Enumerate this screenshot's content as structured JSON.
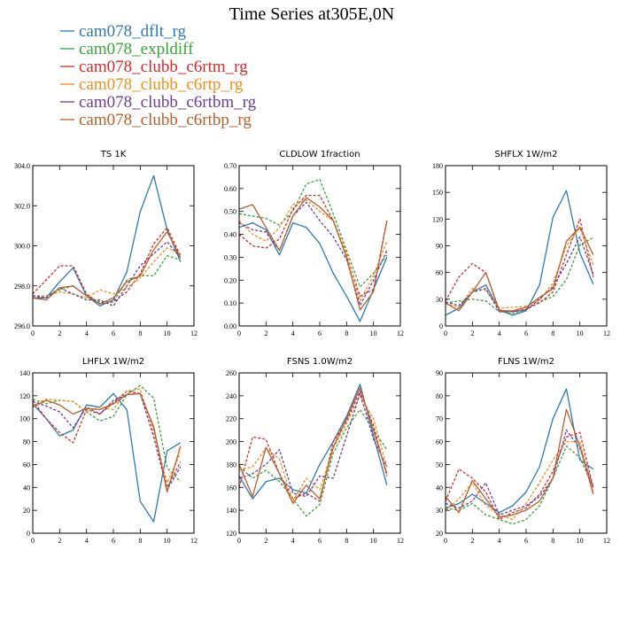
{
  "figure": {
    "title": "Time Series at305E,0N"
  },
  "legend": {
    "placement": "top-left",
    "entries": [
      {
        "name": "cam078_dflt_rg",
        "color": "#2e7ab5",
        "dash": "solid"
      },
      {
        "name": "cam078_expldiff",
        "color": "#3aa33a",
        "dash": "dashed"
      },
      {
        "name": "cam078_clubb_c6rtm_rg",
        "color": "#d42a2a",
        "dash": "dashed"
      },
      {
        "name": "cam078_clubb_c6rtp_rg",
        "color": "#f28c1a",
        "dash": "dashed"
      },
      {
        "name": "cam078_clubb_c6rtbm_rg",
        "color": "#6a3d9a",
        "dash": "dashed"
      },
      {
        "name": "cam078_clubb_c6rtbp_rg",
        "color": "#b5602f",
        "dash": "solid"
      }
    ]
  },
  "chart_data": [
    {
      "type": "line",
      "title": "TS   1K",
      "x": [
        0,
        1,
        2,
        3,
        4,
        5,
        6,
        7,
        8,
        9,
        10,
        11
      ],
      "xlim": [
        0,
        12
      ],
      "xticks": [
        0,
        2,
        4,
        6,
        8,
        10,
        12
      ],
      "ylim": [
        296,
        304
      ],
      "yticks": [
        296.0,
        298.0,
        300.0,
        302.0,
        304.0
      ],
      "ytick_labels": [
        "296.0",
        "298.0",
        "300.0",
        "302.0",
        "304.0"
      ],
      "series": [
        {
          "values": [
            297.4,
            297.4,
            298.2,
            298.9,
            297.5,
            297.0,
            297.3,
            298.7,
            301.7,
            303.5,
            300.8,
            299.2
          ]
        },
        {
          "values": [
            297.5,
            297.5,
            297.8,
            298.0,
            297.5,
            297.2,
            297.2,
            298.3,
            298.5,
            298.5,
            299.5,
            299.3
          ]
        },
        {
          "values": [
            297.6,
            298.3,
            299.0,
            299.0,
            297.6,
            297.1,
            297.2,
            297.7,
            298.6,
            300.1,
            300.9,
            299.5
          ]
        },
        {
          "values": [
            297.4,
            297.5,
            297.7,
            297.6,
            297.4,
            297.8,
            297.6,
            297.9,
            298.4,
            299.2,
            299.9,
            299.6
          ]
        },
        {
          "values": [
            297.5,
            297.4,
            297.9,
            297.6,
            297.3,
            297.3,
            297.0,
            298.0,
            299.0,
            299.6,
            300.2,
            299.4
          ]
        },
        {
          "values": [
            297.4,
            297.3,
            297.9,
            298.0,
            297.5,
            297.1,
            297.4,
            298.2,
            298.5,
            299.8,
            300.7,
            299.4
          ]
        }
      ]
    },
    {
      "type": "line",
      "title": "CLDLOW   1fraction",
      "x": [
        0,
        1,
        2,
        3,
        4,
        5,
        6,
        7,
        8,
        9,
        10,
        11
      ],
      "xlim": [
        0,
        12
      ],
      "xticks": [
        0,
        2,
        4,
        6,
        8,
        10,
        12
      ],
      "ylim": [
        0,
        0.7
      ],
      "yticks": [
        0,
        0.1,
        0.2,
        0.3,
        0.4,
        0.5,
        0.6,
        0.7
      ],
      "ytick_labels": [
        "0.00",
        "0.10",
        "0.20",
        "0.30",
        "0.40",
        "0.50",
        "0.60",
        "0.70"
      ],
      "series": [
        {
          "values": [
            0.43,
            0.45,
            0.42,
            0.31,
            0.45,
            0.43,
            0.36,
            0.23,
            0.13,
            0.02,
            0.16,
            0.3
          ]
        },
        {
          "values": [
            0.49,
            0.48,
            0.47,
            0.44,
            0.5,
            0.62,
            0.64,
            0.49,
            0.33,
            0.17,
            0.23,
            0.31
          ]
        },
        {
          "values": [
            0.4,
            0.35,
            0.34,
            0.38,
            0.51,
            0.57,
            0.57,
            0.46,
            0.31,
            0.13,
            0.16,
            0.46
          ]
        },
        {
          "values": [
            0.46,
            0.4,
            0.37,
            0.43,
            0.53,
            0.55,
            0.5,
            0.46,
            0.32,
            0.11,
            0.22,
            0.37
          ]
        },
        {
          "values": [
            0.45,
            0.42,
            0.41,
            0.33,
            0.48,
            0.54,
            0.46,
            0.39,
            0.29,
            0.09,
            0.2,
            0.33
          ]
        },
        {
          "values": [
            0.51,
            0.53,
            0.43,
            0.33,
            0.48,
            0.56,
            0.52,
            0.46,
            0.3,
            0.07,
            0.15,
            0.46
          ]
        }
      ]
    },
    {
      "type": "line",
      "title": "SHFLX   1W/m2",
      "x": [
        0,
        1,
        2,
        3,
        4,
        5,
        6,
        7,
        8,
        9,
        10,
        11
      ],
      "xlim": [
        0,
        12
      ],
      "xticks": [
        0,
        2,
        4,
        6,
        8,
        10,
        12
      ],
      "ylim": [
        0,
        180
      ],
      "yticks": [
        0,
        30,
        60,
        90,
        120,
        150,
        180
      ],
      "ytick_labels": [
        "0",
        "30",
        "60",
        "90",
        "120",
        "150",
        "180"
      ],
      "series": [
        {
          "values": [
            12,
            20,
            38,
            46,
            18,
            12,
            17,
            46,
            122,
            152,
            82,
            47
          ]
        },
        {
          "values": [
            26,
            28,
            30,
            28,
            16,
            14,
            18,
            27,
            33,
            52,
            91,
            99
          ]
        },
        {
          "values": [
            28,
            55,
            70,
            60,
            18,
            16,
            19,
            26,
            38,
            80,
            120,
            55
          ]
        },
        {
          "values": [
            25,
            21,
            42,
            40,
            20,
            21,
            22,
            29,
            48,
            90,
            110,
            68
          ]
        },
        {
          "values": [
            27,
            23,
            38,
            42,
            16,
            16,
            18,
            30,
            44,
            70,
            100,
            58
          ]
        },
        {
          "values": [
            26,
            17,
            38,
            60,
            17,
            17,
            21,
            32,
            42,
            95,
            111,
            80
          ]
        }
      ]
    },
    {
      "type": "line",
      "title": "LHFLX   1W/m2",
      "x": [
        0,
        1,
        2,
        3,
        4,
        5,
        6,
        7,
        8,
        9,
        10,
        11
      ],
      "xlim": [
        0,
        12
      ],
      "xticks": [
        0,
        2,
        4,
        6,
        8,
        10,
        12
      ],
      "ylim": [
        0,
        140
      ],
      "yticks": [
        0,
        20,
        40,
        60,
        80,
        100,
        120,
        140
      ],
      "ytick_labels": [
        "0",
        "20",
        "40",
        "60",
        "80",
        "100",
        "120",
        "140"
      ],
      "series": [
        {
          "values": [
            113,
            100,
            85,
            90,
            112,
            110,
            122,
            108,
            28,
            10,
            72,
            79
          ]
        },
        {
          "values": [
            117,
            113,
            116,
            115,
            106,
            98,
            102,
            121,
            129,
            118,
            57,
            45
          ]
        },
        {
          "values": [
            116,
            100,
            88,
            79,
            108,
            104,
            114,
            124,
            122,
            92,
            40,
            62
          ]
        },
        {
          "values": [
            112,
            117,
            116,
            115,
            106,
            110,
            108,
            124,
            126,
            88,
            44,
            70
          ]
        },
        {
          "values": [
            115,
            111,
            106,
            92,
            110,
            104,
            116,
            121,
            122,
            84,
            38,
            58
          ]
        },
        {
          "values": [
            110,
            116,
            112,
            104,
            109,
            108,
            113,
            121,
            122,
            93,
            36,
            76
          ]
        }
      ]
    },
    {
      "type": "line",
      "title": "FSNS   1.0W/m2",
      "x": [
        0,
        1,
        2,
        3,
        4,
        5,
        6,
        7,
        8,
        9,
        10,
        11
      ],
      "xlim": [
        0,
        12
      ],
      "xticks": [
        0,
        2,
        4,
        6,
        8,
        10,
        12
      ],
      "ylim": [
        120,
        260
      ],
      "yticks": [
        120,
        140,
        160,
        180,
        200,
        220,
        240,
        260
      ],
      "ytick_labels": [
        "120",
        "140",
        "160",
        "180",
        "200",
        "220",
        "240",
        "260"
      ],
      "series": [
        {
          "values": [
            170,
            150,
            165,
            168,
            158,
            155,
            180,
            200,
            222,
            250,
            205,
            162
          ]
        },
        {
          "values": [
            178,
            168,
            175,
            165,
            150,
            135,
            145,
            190,
            212,
            228,
            210,
            193
          ]
        },
        {
          "values": [
            160,
            204,
            202,
            172,
            150,
            155,
            148,
            200,
            218,
            244,
            214,
            170
          ]
        },
        {
          "values": [
            175,
            178,
            194,
            185,
            148,
            168,
            158,
            194,
            216,
            240,
            220,
            178
          ]
        },
        {
          "values": [
            168,
            172,
            180,
            193,
            155,
            152,
            170,
            168,
            205,
            242,
            202,
            178
          ]
        },
        {
          "values": [
            180,
            152,
            195,
            172,
            146,
            162,
            150,
            195,
            220,
            247,
            210,
            172
          ]
        }
      ]
    },
    {
      "type": "line",
      "title": "FLNS   1W/m2",
      "x": [
        0,
        1,
        2,
        3,
        4,
        5,
        6,
        7,
        8,
        9,
        10,
        11
      ],
      "xlim": [
        0,
        12
      ],
      "xticks": [
        0,
        2,
        4,
        6,
        8,
        10,
        12
      ],
      "ylim": [
        20,
        90
      ],
      "yticks": [
        20,
        30,
        40,
        50,
        60,
        70,
        80,
        90
      ],
      "ytick_labels": [
        "20",
        "30",
        "40",
        "50",
        "60",
        "70",
        "80",
        "90"
      ],
      "series": [
        {
          "values": [
            31,
            33,
            37,
            33,
            29,
            32,
            38,
            49,
            70,
            83,
            52,
            48
          ]
        },
        {
          "values": [
            31,
            30,
            33,
            28,
            26,
            24,
            26,
            32,
            44,
            58,
            53,
            40
          ]
        },
        {
          "values": [
            34,
            48,
            44,
            38,
            26,
            29,
            31,
            37,
            47,
            62,
            64,
            40
          ]
        },
        {
          "values": [
            30,
            35,
            42,
            32,
            28,
            26,
            33,
            42,
            52,
            60,
            60,
            38
          ]
        },
        {
          "values": [
            33,
            31,
            34,
            42,
            28,
            30,
            32,
            36,
            44,
            65,
            57,
            40
          ]
        },
        {
          "values": [
            36,
            29,
            43,
            35,
            27,
            28,
            30,
            34,
            44,
            74,
            58,
            37
          ]
        }
      ]
    }
  ]
}
